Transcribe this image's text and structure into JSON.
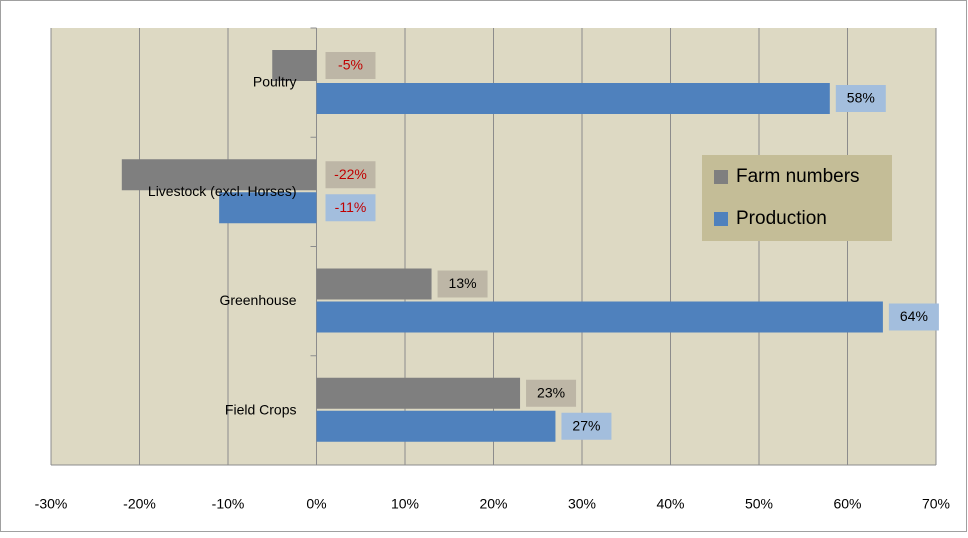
{
  "chart_data": {
    "type": "hbar",
    "categories": [
      "Poultry",
      "Livestock (excl. Horses)",
      "Greenhouse",
      "Field Crops"
    ],
    "series": [
      {
        "name": "Farm numbers",
        "color": "#7f7f7f",
        "label_box": "#bdb6a6",
        "values": [
          -5,
          -22,
          13,
          23
        ],
        "value_labels": [
          "-5%",
          "-22%",
          "13%",
          "23%"
        ]
      },
      {
        "name": "Production",
        "color": "#4f81bd",
        "label_box": "#a3bedd",
        "values": [
          58,
          -11,
          64,
          27
        ],
        "value_labels": [
          "58%",
          "-11%",
          "64%",
          "27%"
        ]
      }
    ],
    "negative_label_color": "#c00000",
    "xlim": [
      -30,
      70
    ],
    "xticks": [
      {
        "value": -30,
        "label": "-30%"
      },
      {
        "value": -20,
        "label": "-20%"
      },
      {
        "value": -10,
        "label": "-10%"
      },
      {
        "value": 0,
        "label": "0%"
      },
      {
        "value": 10,
        "label": "10%"
      },
      {
        "value": 20,
        "label": "20%"
      },
      {
        "value": 30,
        "label": "30%"
      },
      {
        "value": 40,
        "label": "40%"
      },
      {
        "value": 50,
        "label": "50%"
      },
      {
        "value": 60,
        "label": "60%"
      },
      {
        "value": 70,
        "label": "70%"
      }
    ],
    "grid": true,
    "legend": "right"
  }
}
